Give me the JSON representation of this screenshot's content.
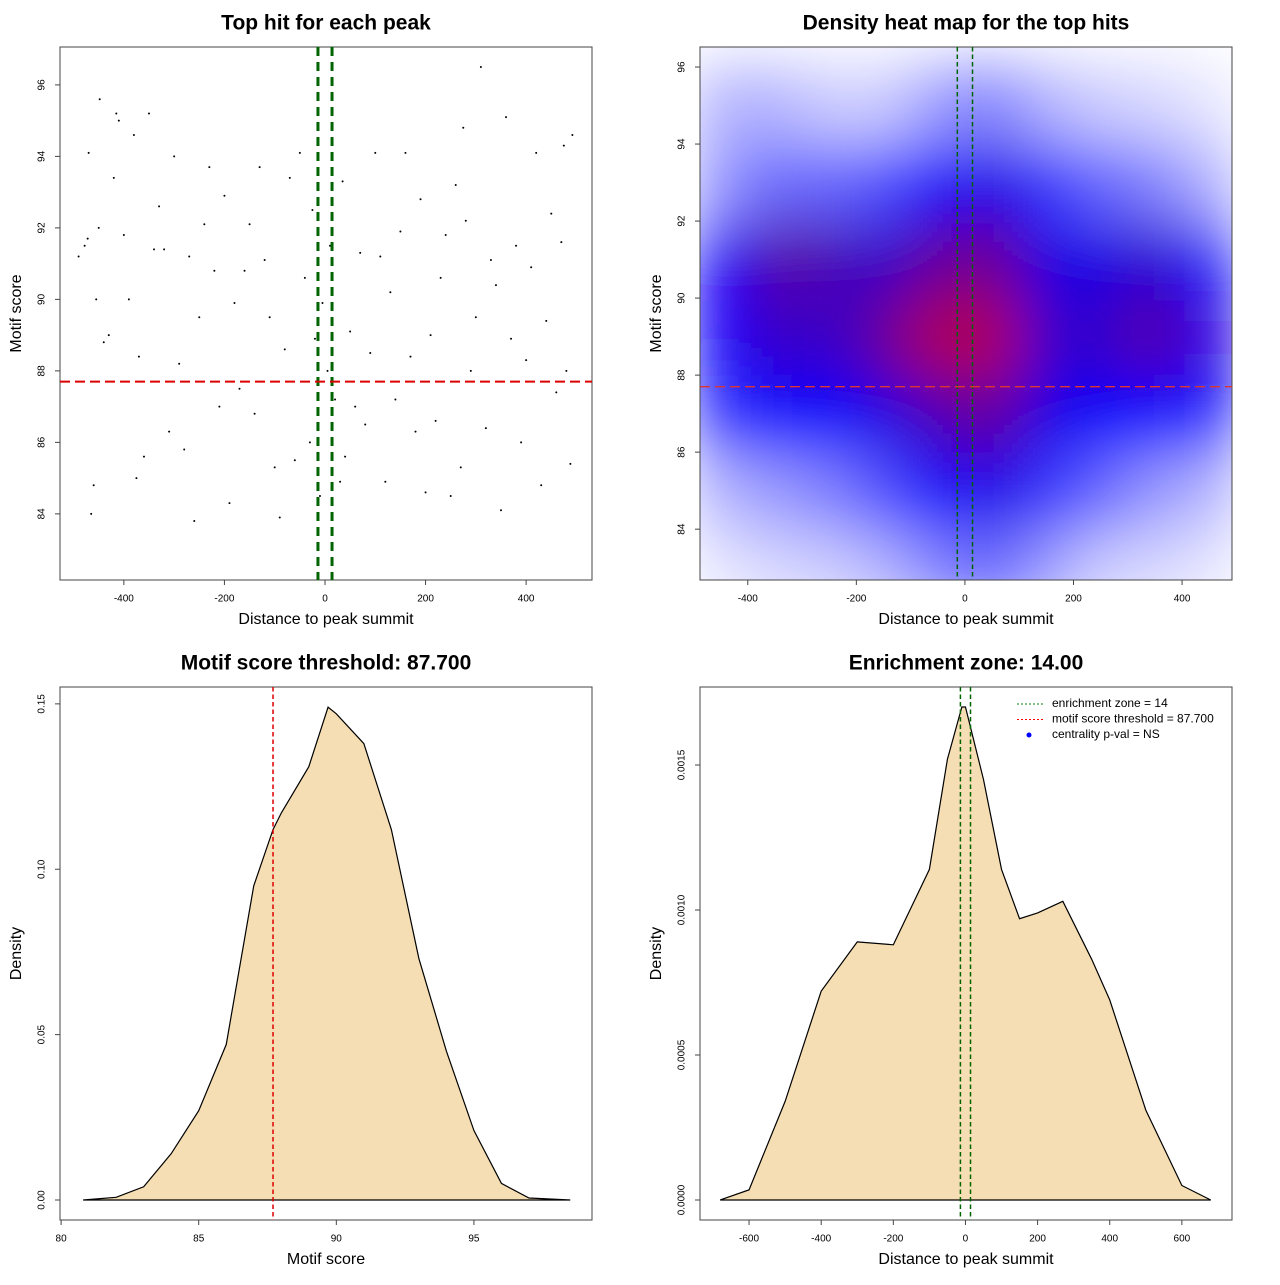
{
  "chart_data": [
    {
      "type": "scatter",
      "title": "Top hit for each peak",
      "xlabel": "Distance to peak summit",
      "ylabel": "Motif score",
      "x": [
        -490,
        -478,
        -472,
        -470,
        -465,
        -460,
        -455,
        -450,
        -448,
        -440,
        -430,
        -420,
        -415,
        -410,
        -400,
        -390,
        -380,
        -375,
        -370,
        -360,
        -350,
        -340,
        -330,
        -320,
        -310,
        -300,
        -290,
        -280,
        -270,
        -260,
        -250,
        -240,
        -230,
        -220,
        -210,
        -200,
        -190,
        -180,
        -170,
        -160,
        -150,
        -140,
        -130,
        -120,
        -110,
        -100,
        -90,
        -80,
        -70,
        -60,
        -50,
        -40,
        -30,
        -25,
        -20,
        -15,
        -10,
        -5,
        5,
        10,
        15,
        20,
        30,
        35,
        40,
        50,
        60,
        70,
        80,
        90,
        100,
        110,
        120,
        130,
        140,
        150,
        160,
        170,
        180,
        190,
        200,
        210,
        220,
        230,
        240,
        250,
        260,
        270,
        275,
        280,
        290,
        300,
        310,
        320,
        330,
        340,
        350,
        360,
        370,
        380,
        390,
        400,
        410,
        420,
        430,
        440,
        450,
        460,
        470,
        475,
        480,
        488,
        492
      ],
      "y": [
        91.2,
        91.5,
        91.7,
        94.1,
        84,
        84.8,
        90,
        92,
        95.6,
        88.8,
        89,
        93.4,
        95.2,
        95,
        91.8,
        90,
        94.6,
        85,
        88.4,
        85.6,
        95.2,
        91.4,
        92.6,
        91.4,
        86.3,
        94,
        88.2,
        85.8,
        91.2,
        83.8,
        89.5,
        92.1,
        93.7,
        90.8,
        87,
        92.9,
        84.3,
        89.9,
        87.5,
        90.8,
        92.1,
        86.8,
        93.7,
        91.1,
        89.5,
        85.3,
        83.9,
        88.6,
        93.4,
        85.5,
        94.1,
        90.6,
        86,
        92.5,
        88.9,
        85.7,
        84.5,
        89.9,
        88,
        91.5,
        93.9,
        87.2,
        84.9,
        93.3,
        85.6,
        89.1,
        87,
        91.3,
        86.5,
        88.5,
        94.1,
        91.2,
        84.9,
        90.2,
        87.2,
        91.9,
        94.1,
        88.4,
        86.3,
        92.8,
        84.6,
        89,
        86.6,
        90.6,
        91.8,
        84.5,
        93.2,
        85.3,
        94.8,
        92.2,
        88,
        89.5,
        96.5,
        86.4,
        91.1,
        90.4,
        84.1,
        95.1,
        88.9,
        91.5,
        86,
        88.3,
        90.9,
        94.1,
        84.8,
        89.4,
        92.4,
        87.4,
        91.6,
        94.3,
        88,
        85.4,
        94.6
      ],
      "color": "#000000",
      "xlim": [
        -527,
        531
      ],
      "xticks": [
        -400,
        -200,
        0,
        200,
        400
      ],
      "ylim": [
        82.15,
        97.06
      ],
      "yticks": [
        84,
        86,
        88,
        90,
        92,
        94,
        96
      ],
      "vlines": [
        -14,
        14
      ],
      "vline_color": "#006400",
      "hline": 87.7,
      "hline_color": "#dd0000"
    },
    {
      "type": "heatmap",
      "title": "Density heat map for the top hits",
      "xlabel": "Distance to peak summit",
      "ylabel": "Motif score",
      "x": [
        -450,
        -350,
        -250,
        -150,
        -50,
        50,
        150,
        250,
        350,
        450
      ],
      "y": [
        83,
        85,
        87,
        89,
        91,
        93,
        95
      ],
      "z": [
        [
          0.05,
          0.08,
          0.1,
          0.15,
          0.25,
          0.3,
          0.2,
          0.1,
          0.08,
          0.05
        ],
        [
          0.15,
          0.2,
          0.25,
          0.35,
          0.5,
          0.55,
          0.4,
          0.3,
          0.2,
          0.15
        ],
        [
          0.4,
          0.5,
          0.5,
          0.55,
          0.65,
          0.7,
          0.55,
          0.5,
          0.5,
          0.45
        ],
        [
          0.5,
          0.62,
          0.6,
          0.7,
          0.85,
          0.85,
          0.6,
          0.6,
          0.68,
          0.55
        ],
        [
          0.5,
          0.68,
          0.65,
          0.6,
          0.7,
          0.72,
          0.55,
          0.55,
          0.6,
          0.45
        ],
        [
          0.2,
          0.3,
          0.3,
          0.35,
          0.5,
          0.55,
          0.4,
          0.3,
          0.25,
          0.15
        ],
        [
          0.15,
          0.15,
          0.1,
          0.1,
          0.2,
          0.25,
          0.15,
          0.1,
          0.08,
          0.05
        ]
      ],
      "colors": [
        "#ffffff",
        "#0000ff",
        "#ff0000"
      ],
      "xlim": [
        -488,
        492
      ],
      "xticks": [
        -400,
        -200,
        0,
        200,
        400
      ],
      "ylim": [
        82.68,
        96.52
      ],
      "yticks": [
        84,
        86,
        88,
        90,
        92,
        94,
        96
      ],
      "vlines": [
        -14,
        14
      ],
      "vline_color": "#006400",
      "hline": 87.7,
      "hline_color": "#dd3333"
    },
    {
      "type": "area",
      "title": "Motif score threshold: 87.700",
      "xlabel": "Motif score",
      "ylabel": "Density",
      "x": [
        80.8,
        82,
        83,
        84,
        85,
        86,
        87,
        87.7,
        88,
        89,
        89.7,
        90,
        91,
        92,
        93,
        94,
        95,
        96,
        97,
        98.5
      ],
      "y": [
        0,
        0.0008,
        0.004,
        0.014,
        0.027,
        0.047,
        0.095,
        0.112,
        0.117,
        0.131,
        0.149,
        0.147,
        0.138,
        0.112,
        0.073,
        0.045,
        0.021,
        0.005,
        0.0006,
        0
      ],
      "color": "#f5deb3",
      "xlim": [
        79.96,
        99.29
      ],
      "xticks": [
        80,
        85,
        90,
        95
      ],
      "ylim": [
        -0.00605,
        0.1551
      ],
      "yticks": [
        {
          "value": 0,
          "label": "0.00"
        },
        0.05,
        {
          "value": 0.1,
          "label": "0.10"
        },
        0.15
      ],
      "vlines": [
        87.7
      ],
      "vline_color": "#dd0000"
    },
    {
      "type": "area",
      "title": "Enrichment zone: 14.00",
      "xlabel": "Distance to peak summit",
      "ylabel": "Density",
      "x": [
        -680,
        -600,
        -500,
        -400,
        -300,
        -200,
        -100,
        -50,
        -10,
        0,
        50,
        100,
        150,
        200,
        270,
        350,
        400,
        500,
        600,
        680
      ],
      "y": [
        0,
        3.5e-05,
        0.00034,
        0.00072,
        0.00089,
        0.00088,
        0.00114,
        0.00152,
        0.0017,
        0.0017,
        0.00145,
        0.00114,
        0.00097,
        0.00099,
        0.00103,
        0.00083,
        0.00069,
        0.00031,
        5e-05,
        0
      ],
      "color": "#f5deb3",
      "xlim": [
        -736,
        739
      ],
      "xticks": [
        -600,
        -400,
        -200,
        0,
        200,
        400,
        600
      ],
      "ylim": [
        -6.9e-05,
        0.001769
      ],
      "yticks": [
        {
          "value": 0,
          "label": "0.0000"
        },
        0.0005,
        {
          "value": 0.001,
          "label": "0.0010"
        },
        0.0015
      ],
      "vlines": [
        -14,
        14
      ],
      "vline_color": "#006400",
      "legend": [
        {
          "label": "enrichment zone = 14",
          "color": "#008000",
          "style": "dotted"
        },
        {
          "label": "motif score threshold = 87.700",
          "color": "#ff0000",
          "style": "dotted"
        },
        {
          "label": "centrality p-val = NS",
          "color": "#0000ff",
          "style": "point"
        }
      ]
    }
  ]
}
